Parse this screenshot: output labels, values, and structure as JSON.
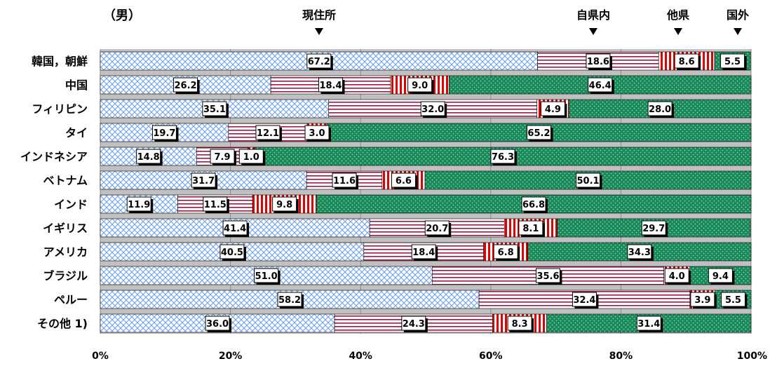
{
  "chart_data": {
    "type": "bar",
    "orientation": "horizontal",
    "stacked": true,
    "percent_stacked": true,
    "subtitle": "（男）",
    "categories": [
      "韓国，朝鮮",
      "中国",
      "フィリピン",
      "タイ",
      "インドネシア",
      "ベトナム",
      "インド",
      "イギリス",
      "アメリカ",
      "ブラジル",
      "ペルー",
      "その他 1)"
    ],
    "series": [
      {
        "name": "現住所",
        "color": "#a9c4ec",
        "pattern": "crosshatch",
        "values": [
          67.2,
          26.2,
          35.1,
          19.7,
          14.8,
          31.7,
          11.9,
          41.4,
          40.5,
          51.0,
          58.2,
          36.0
        ]
      },
      {
        "name": "自県内",
        "color": "#a01050",
        "pattern": "horizontal-stripes",
        "values": [
          18.6,
          18.4,
          32.0,
          12.1,
          7.9,
          11.6,
          11.5,
          20.7,
          18.4,
          35.6,
          32.4,
          24.3
        ]
      },
      {
        "name": "他県",
        "color": "#e00000",
        "pattern": "vertical-stripes",
        "values": [
          8.6,
          9.0,
          4.9,
          3.0,
          1.0,
          6.6,
          9.8,
          8.1,
          6.8,
          4.0,
          3.9,
          8.3
        ]
      },
      {
        "name": "国外",
        "color": "#1a8a5a",
        "pattern": "dots",
        "values": [
          5.5,
          46.4,
          28.0,
          65.2,
          76.3,
          50.1,
          66.8,
          29.7,
          34.3,
          9.4,
          5.5,
          31.4
        ]
      }
    ],
    "legend_labels": [
      "現住所",
      "自県内",
      "他県",
      "国外"
    ],
    "legend_placement": "top",
    "x_ticks": [
      "0%",
      "20%",
      "40%",
      "60%",
      "80%",
      "100%"
    ],
    "xlim": [
      0,
      100
    ],
    "grid": true
  }
}
